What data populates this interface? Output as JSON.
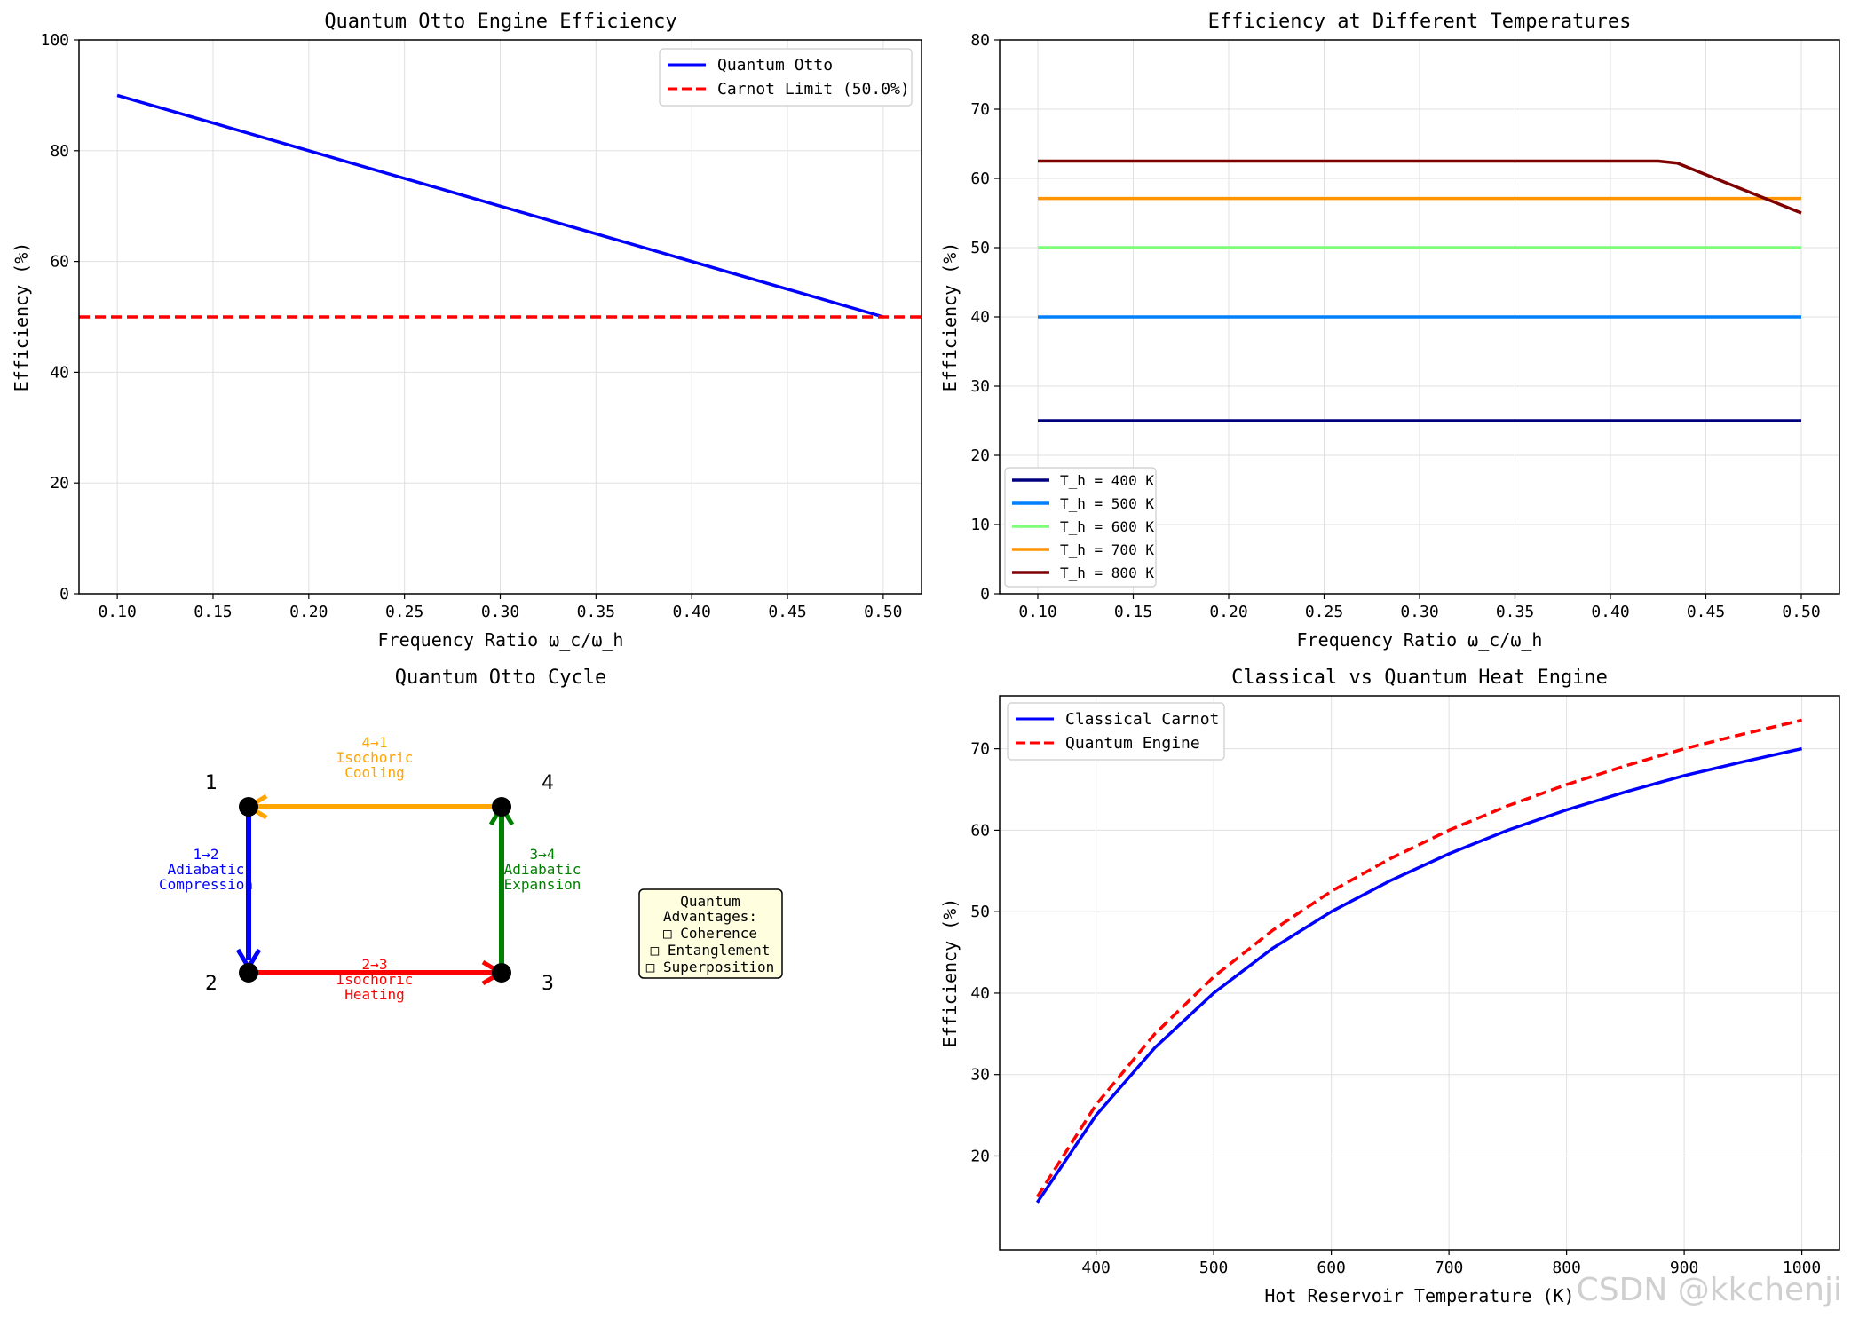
{
  "chart_data": [
    {
      "id": "otto_eff",
      "type": "line",
      "title": "Quantum Otto Engine Efficiency",
      "xlabel": "Frequency Ratio ω_c/ω_h",
      "ylabel": "Efficiency (%)",
      "xlim": [
        0.08,
        0.52
      ],
      "ylim": [
        0,
        100
      ],
      "xticks": [
        0.1,
        0.15,
        0.2,
        0.25,
        0.3,
        0.35,
        0.4,
        0.45,
        0.5
      ],
      "xtick_labels": [
        "0.10",
        "0.15",
        "0.20",
        "0.25",
        "0.30",
        "0.35",
        "0.40",
        "0.45",
        "0.50"
      ],
      "yticks": [
        0,
        20,
        40,
        60,
        80,
        100
      ],
      "grid": true,
      "legend_position": "top-right",
      "series": [
        {
          "name": "Quantum Otto",
          "color": "#0000ff",
          "style": "solid",
          "x": [
            0.1,
            0.5
          ],
          "y": [
            90,
            50
          ]
        },
        {
          "name": "Carnot Limit (50.0%)",
          "color": "#ff0000",
          "style": "dashed",
          "hline": 50
        }
      ]
    },
    {
      "id": "eff_temps",
      "type": "line",
      "title": "Efficiency at Different Temperatures",
      "xlabel": "Frequency Ratio ω_c/ω_h",
      "ylabel": "Efficiency (%)",
      "xlim": [
        0.08,
        0.52
      ],
      "ylim": [
        0,
        80
      ],
      "xticks": [
        0.1,
        0.15,
        0.2,
        0.25,
        0.3,
        0.35,
        0.4,
        0.45,
        0.5
      ],
      "xtick_labels": [
        "0.10",
        "0.15",
        "0.20",
        "0.25",
        "0.30",
        "0.35",
        "0.40",
        "0.45",
        "0.50"
      ],
      "yticks": [
        0,
        10,
        20,
        30,
        40,
        50,
        60,
        70,
        80
      ],
      "grid": true,
      "legend_position": "bottom-left",
      "series": [
        {
          "name": "T_h = 400 K",
          "color": "#00007f",
          "x": [
            0.1,
            0.5
          ],
          "y": [
            25,
            25
          ]
        },
        {
          "name": "T_h = 500 K",
          "color": "#0080ff",
          "x": [
            0.1,
            0.5
          ],
          "y": [
            40,
            40
          ]
        },
        {
          "name": "T_h = 600 K",
          "color": "#7dff7a",
          "x": [
            0.1,
            0.5
          ],
          "y": [
            50,
            50
          ]
        },
        {
          "name": "T_h = 700 K",
          "color": "#ff9400",
          "x": [
            0.1,
            0.48,
            0.5
          ],
          "y": [
            57.1,
            57.1,
            57.1
          ]
        },
        {
          "name": "T_h = 800 K",
          "color": "#7f0000",
          "x": [
            0.1,
            0.425,
            0.435,
            0.5
          ],
          "y": [
            62.5,
            62.5,
            62.2,
            55
          ]
        }
      ]
    },
    {
      "id": "classical_quantum",
      "type": "line",
      "title": "Classical vs Quantum Heat Engine",
      "xlabel": "Hot Reservoir Temperature (K)",
      "ylabel": "Efficiency (%)",
      "xlim": [
        318,
        1032
      ],
      "ylim": [
        8.5,
        76.5
      ],
      "xticks": [
        400,
        500,
        600,
        700,
        800,
        900,
        1000
      ],
      "xtick_labels": [
        "400",
        "500",
        "600",
        "700",
        "800",
        "900",
        "1000"
      ],
      "yticks": [
        20,
        30,
        40,
        50,
        60,
        70
      ],
      "grid": true,
      "legend_position": "top-left",
      "series": [
        {
          "name": "Classical Carnot",
          "color": "#0000ff",
          "style": "solid",
          "x": [
            350,
            400,
            450,
            500,
            550,
            600,
            650,
            700,
            750,
            800,
            850,
            900,
            950,
            1000
          ],
          "y": [
            14.3,
            25.0,
            33.3,
            40.0,
            45.5,
            50.0,
            53.8,
            57.1,
            60.0,
            62.5,
            64.7,
            66.7,
            68.4,
            70.0
          ]
        },
        {
          "name": "Quantum Engine",
          "color": "#ff0000",
          "style": "dashed",
          "x": [
            350,
            400,
            450,
            500,
            550,
            600,
            650,
            700,
            750,
            800,
            850,
            900,
            950,
            1000
          ],
          "y": [
            15.0,
            26.3,
            35.0,
            42.0,
            47.7,
            52.5,
            56.5,
            60.0,
            63.0,
            65.6,
            67.9,
            70.0,
            71.8,
            73.5
          ]
        }
      ]
    }
  ],
  "diagram": {
    "title": "Quantum Otto Cycle",
    "nodes": [
      "1",
      "2",
      "3",
      "4"
    ],
    "steps": [
      {
        "label": "1→2",
        "line1": "Adiabatic",
        "line2": "Compression",
        "color": "#0000ff"
      },
      {
        "label": "2→3",
        "line1": "Isochoric",
        "line2": "Heating",
        "color": "#ff0000"
      },
      {
        "label": "3→4",
        "line1": "Adiabatic",
        "line2": "Expansion",
        "color": "#008000"
      },
      {
        "label": "4→1",
        "line1": "Isochoric",
        "line2": "Cooling",
        "color": "#ffa500"
      }
    ],
    "advantages": {
      "title1": "Quantum",
      "title2": "Advantages:",
      "items": [
        "□ Coherence",
        "□ Entanglement",
        "□ Superposition"
      ]
    }
  },
  "watermark": "CSDN @kkchenji"
}
